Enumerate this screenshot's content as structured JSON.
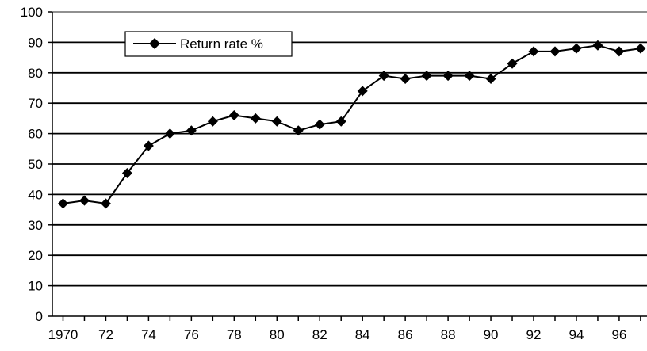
{
  "chart_data": {
    "type": "line",
    "title": "",
    "xlabel": "",
    "ylabel": "",
    "x": [
      1970,
      1971,
      1972,
      1973,
      1974,
      1975,
      1976,
      1977,
      1978,
      1979,
      1980,
      1981,
      1982,
      1983,
      1984,
      1985,
      1986,
      1987,
      1988,
      1989,
      1990,
      1991,
      1992,
      1993,
      1994,
      1995,
      1996,
      1997
    ],
    "series": [
      {
        "name": "Return rate %",
        "values": [
          37,
          38,
          37,
          47,
          56,
          60,
          61,
          64,
          66,
          65,
          64,
          61,
          63,
          64,
          74,
          79,
          78,
          79,
          79,
          79,
          78,
          83,
          87,
          87,
          88,
          89,
          87,
          88
        ],
        "color": "#000000",
        "marker": "diamond"
      }
    ],
    "x_tick_labels": [
      "1970",
      "72",
      "74",
      "76",
      "78",
      "80",
      "82",
      "84",
      "86",
      "88",
      "90",
      "92",
      "94",
      "96"
    ],
    "x_tick_values": [
      1970,
      1972,
      1974,
      1976,
      1978,
      1980,
      1982,
      1984,
      1986,
      1988,
      1990,
      1992,
      1994,
      1996
    ],
    "y_ticks": [
      0,
      10,
      20,
      30,
      40,
      50,
      60,
      70,
      80,
      90,
      100
    ],
    "ylim": [
      0,
      100
    ],
    "xlim": [
      1969.5,
      1997.3
    ],
    "grid": "horizontal",
    "legend": "top-left"
  }
}
